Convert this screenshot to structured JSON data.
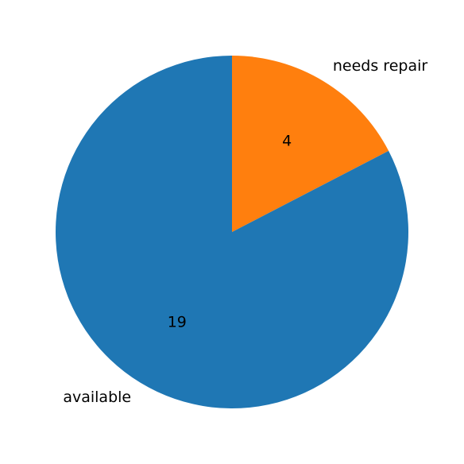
{
  "chart_data": {
    "type": "pie",
    "title": "",
    "start_angle_deg": 90,
    "counterclock": false,
    "slices": [
      {
        "label": "needs repair",
        "value": 4,
        "value_label": "4",
        "color": "#ff7f0e"
      },
      {
        "label": "available",
        "value": 19,
        "value_label": "19",
        "color": "#1f77b4"
      }
    ]
  }
}
